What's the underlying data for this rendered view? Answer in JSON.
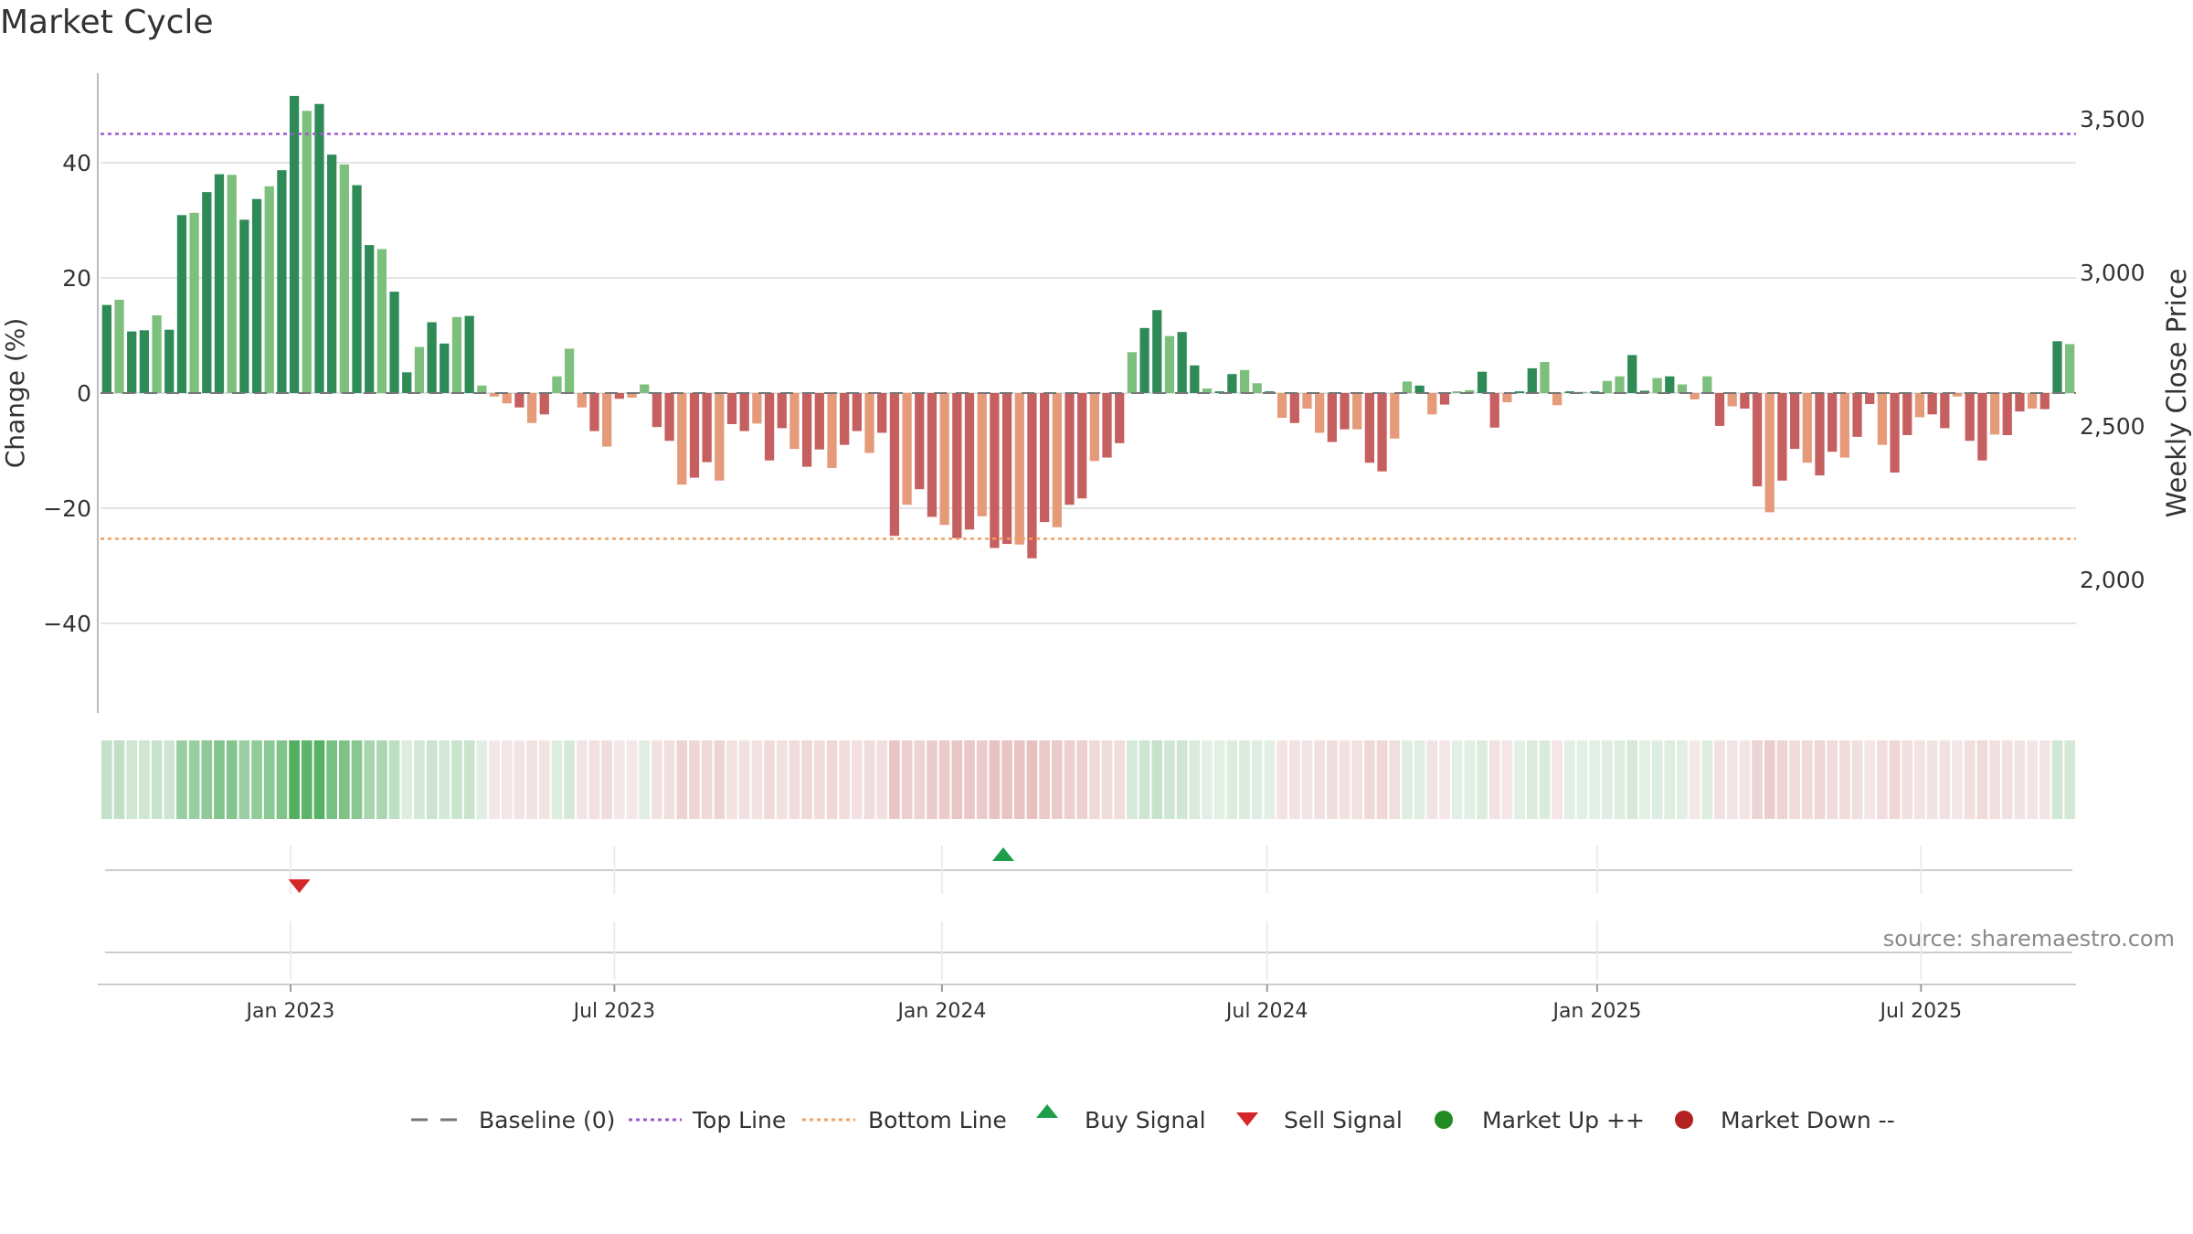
{
  "title": "Market Cycle",
  "source": "source: sharemaestro.com",
  "chart_data": {
    "type": "bar",
    "title": "Market Cycle",
    "ylabel": "Change (%)",
    "y2label": "Weekly Close Price",
    "ylim": [
      -55,
      57
    ],
    "y_ticks": [
      40,
      20,
      0,
      -20,
      -40
    ],
    "y_tick_labels": [
      "40",
      "20",
      "0",
      "−20",
      "−40"
    ],
    "y2_ticks": [
      3500,
      3000,
      2500,
      2000
    ],
    "y2_tick_labels": [
      "3,500",
      "3,000",
      "2,500",
      "2,000"
    ],
    "top_line": 45,
    "bottom_line": -25.3,
    "x_tick_labels": [
      "Jan 2023",
      "Jul 2023",
      "Jan 2024",
      "Jul 2024",
      "Jan 2025",
      "Jul 2025"
    ],
    "x_tick_bar_index": [
      14.7,
      40.6,
      66.8,
      92.8,
      119.2,
      145.1
    ],
    "values": [
      15.3,
      16.2,
      10.7,
      10.9,
      13.5,
      11.0,
      30.9,
      31.3,
      34.9,
      38.0,
      37.9,
      30.1,
      33.7,
      35.9,
      38.7,
      51.6,
      49.0,
      50.2,
      41.4,
      39.7,
      36.1,
      25.7,
      25.0,
      17.6,
      3.6,
      8.0,
      12.3,
      8.6,
      13.2,
      13.4,
      1.3,
      -0.6,
      -1.8,
      -2.5,
      -5.2,
      -3.7,
      2.9,
      7.7,
      -2.5,
      -6.6,
      -9.3,
      -1.0,
      -0.8,
      1.5,
      -5.9,
      -8.3,
      -15.9,
      -14.7,
      -12.0,
      -15.2,
      -5.4,
      -6.6,
      -5.3,
      -11.7,
      -6.1,
      -9.7,
      -12.8,
      -9.8,
      -13.0,
      -9.0,
      -6.6,
      -10.4,
      -6.9,
      -24.8,
      -19.4,
      -16.7,
      -21.5,
      -22.9,
      -25.2,
      -23.7,
      -21.4,
      -26.9,
      -26.2,
      -26.3,
      -28.7,
      -22.4,
      -23.3,
      -19.4,
      -18.3,
      -11.8,
      -11.2,
      -8.7,
      7.1,
      11.3,
      14.4,
      9.9,
      10.6,
      4.8,
      0.8,
      0.3,
      3.3,
      4.0,
      1.7,
      0.3,
      -4.3,
      -5.2,
      -2.7,
      -6.9,
      -8.5,
      -6.3,
      -6.3,
      -12.1,
      -13.6,
      -7.9,
      2.0,
      1.3,
      -3.7,
      -2.0,
      0.3,
      0.5,
      3.7,
      -6.0,
      -1.6,
      0.3,
      4.3,
      5.4,
      -2.1,
      0.3,
      0.2,
      0.3,
      2.1,
      2.9,
      6.6,
      0.4,
      2.6,
      2.9,
      1.5,
      -1.1,
      2.9,
      -5.7,
      -2.3,
      -2.7,
      -16.2,
      -20.7,
      -15.2,
      -9.7,
      -12.1,
      -14.3,
      -10.2,
      -11.2,
      -7.6,
      -1.9,
      -9.0,
      -13.8,
      -7.3,
      -4.2,
      -3.7,
      -6.1,
      -0.6,
      -8.3,
      -11.7,
      -7.2,
      -7.3,
      -3.2,
      -2.7,
      -2.8,
      9.0,
      8.5
    ],
    "colors": {
      "up_dark": "#2e8b57",
      "up_light": "#7dbf7d",
      "down_dark": "#c65f5f",
      "down_light": "#e59a7a",
      "top_line": "#9b59d0",
      "bottom_line": "#f0a060",
      "grid": "#e3e3e3",
      "axis": "#bbbbbb",
      "buy_signal": "#1e9e4a",
      "sell_signal": "#d62728",
      "market_up": "#228b22",
      "market_down": "#b22222",
      "baseline": "#777777"
    },
    "signals": [
      {
        "type": "sell",
        "bar_index": 15.4
      },
      {
        "type": "buy",
        "bar_index": 71.7
      }
    ],
    "legend": [
      {
        "label": "Baseline (0)",
        "marker": "dash"
      },
      {
        "label": "Top Line",
        "marker": "dot-purple"
      },
      {
        "label": "Bottom Line",
        "marker": "dot-orange"
      },
      {
        "label": "Buy Signal",
        "marker": "triangle-up"
      },
      {
        "label": "Sell Signal",
        "marker": "triangle-down"
      },
      {
        "label": "Market Up ++",
        "marker": "circle-green"
      },
      {
        "label": "Market Down --",
        "marker": "circle-red"
      }
    ],
    "legend_placement": "bottom-center",
    "grid": true
  }
}
